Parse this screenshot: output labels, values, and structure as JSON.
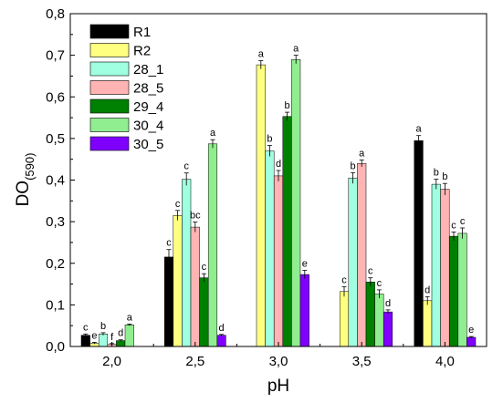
{
  "chart_data": {
    "type": "bar",
    "title": "",
    "xlabel": "pH",
    "ylabel_main": "DO",
    "ylabel_sub": "(590)",
    "categories": [
      "2,0",
      "2,5",
      "3,0",
      "3,5",
      "4,0"
    ],
    "ylim": [
      0,
      0.8
    ],
    "yticks": [
      "0,0",
      "0,1",
      "0,2",
      "0,3",
      "0,4",
      "0,5",
      "0,6",
      "0,7",
      "0,8"
    ],
    "ytick_values": [
      0,
      0.1,
      0.2,
      0.3,
      0.4,
      0.5,
      0.6,
      0.7,
      0.8
    ],
    "grid": false,
    "legend_position": "top-left",
    "series": [
      {
        "name": "R1",
        "color": "#000000",
        "values": [
          0.027,
          0.215,
          null,
          null,
          0.495
        ],
        "errors": [
          0.003,
          0.018,
          null,
          null,
          0.012
        ],
        "labels": [
          "c",
          "c",
          "",
          "",
          "a"
        ]
      },
      {
        "name": "R2",
        "color": "#ffff80",
        "values": [
          0.008,
          0.315,
          0.677,
          0.132,
          0.11
        ],
        "errors": [
          0.002,
          0.012,
          0.01,
          0.012,
          0.01
        ],
        "labels": [
          "e",
          "c",
          "a",
          "c",
          "d"
        ]
      },
      {
        "name": "28_1",
        "color": "#a0ffe0",
        "values": [
          0.03,
          0.402,
          0.47,
          0.405,
          0.39
        ],
        "errors": [
          0.003,
          0.015,
          0.013,
          0.013,
          0.012
        ],
        "labels": [
          "b",
          "c",
          "b",
          "b",
          "b"
        ]
      },
      {
        "name": "28_5",
        "color": "#ffb3b3",
        "values": [
          0.005,
          0.287,
          0.41,
          0.44,
          0.378
        ],
        "errors": [
          0.002,
          0.012,
          0.013,
          0.008,
          0.014
        ],
        "labels": [
          "f",
          "bc",
          "d",
          "a",
          "b"
        ]
      },
      {
        "name": "29_4",
        "color": "#008000",
        "values": [
          0.014,
          0.165,
          0.553,
          0.155,
          0.265
        ],
        "errors": [
          0.002,
          0.01,
          0.01,
          0.01,
          0.01
        ],
        "labels": [
          "d",
          "c",
          "b",
          "c",
          "c"
        ]
      },
      {
        "name": "30_4",
        "color": "#90ee90",
        "values": [
          0.052,
          0.487,
          0.69,
          0.126,
          0.272
        ],
        "errors": [
          0.002,
          0.01,
          0.01,
          0.01,
          0.013
        ],
        "labels": [
          "a",
          "a",
          "a",
          "c",
          "c"
        ]
      },
      {
        "name": "30_5",
        "color": "#8000ff",
        "values": [
          null,
          0.027,
          0.173,
          0.083,
          0.022
        ],
        "errors": [
          null,
          0.002,
          0.01,
          0.005,
          0.002
        ],
        "labels": [
          "",
          "d",
          "e",
          "d",
          "e"
        ]
      }
    ]
  }
}
